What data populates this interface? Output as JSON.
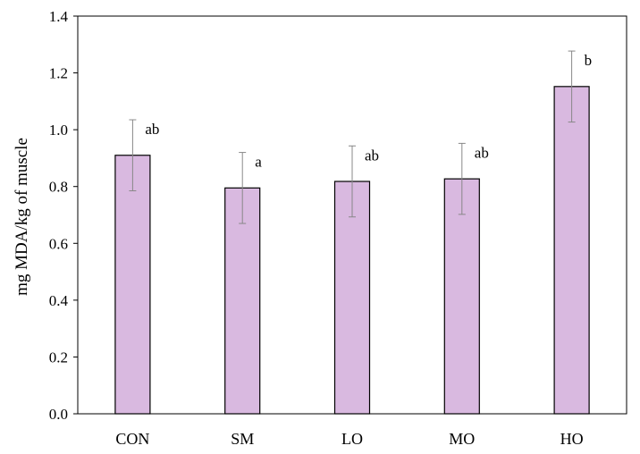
{
  "chart_data": {
    "type": "bar",
    "categories": [
      "CON",
      "SM",
      "LO",
      "MO",
      "HO"
    ],
    "values": [
      0.91,
      0.795,
      0.818,
      0.827,
      1.152
    ],
    "error": [
      0.125,
      0.125,
      0.125,
      0.125,
      0.125
    ],
    "annotations": [
      "ab",
      "a",
      "ab",
      "ab",
      "b"
    ],
    "ylabel": "mg MDA/kg of muscle",
    "xlabel": "",
    "title": "",
    "ylim": [
      0,
      1.4
    ],
    "yticks": [
      "0.0",
      "0.2",
      "0.4",
      "0.6",
      "0.8",
      "1.0",
      "1.2",
      "1.4"
    ],
    "bar_color": "#d9b9e0",
    "bar_edge_color": "#000000",
    "error_color": "#888888",
    "grid": false,
    "legend": "none"
  }
}
